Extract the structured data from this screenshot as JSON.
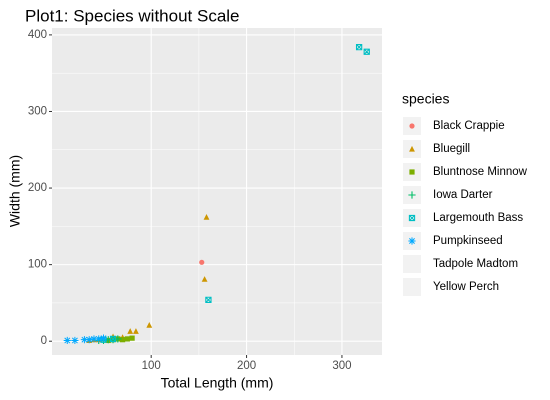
{
  "chart_data": {
    "type": "scatter",
    "title": "Plot1: Species without Scale",
    "x_label": "Total Length (mm)",
    "y_label": "Width (mm)",
    "legend_title": "species",
    "xlim": [
      -4,
      342
    ],
    "ylim": [
      -18,
      409
    ],
    "xticks": [
      100,
      200,
      300
    ],
    "yticks": [
      0,
      100,
      200,
      300,
      400
    ],
    "grid": true,
    "legend": "right",
    "series": [
      {
        "name": "Black Crappie",
        "color": "#F8766D",
        "shape": "circle",
        "x": [
          153
        ],
        "values": [
          103
        ]
      },
      {
        "name": "Bluegill",
        "color": "#CD9600",
        "shape": "triangle",
        "x": [
          158,
          156,
          98,
          84,
          78,
          60,
          45,
          40,
          35,
          50,
          70
        ],
        "values": [
          162,
          81,
          21,
          13,
          13,
          6,
          2,
          2,
          1,
          3,
          5
        ]
      },
      {
        "name": "Bluntnose Minnow",
        "color": "#7CAE00",
        "shape": "square",
        "x": [
          75,
          80,
          70,
          65,
          60,
          55
        ],
        "values": [
          3,
          4,
          2,
          3,
          2,
          1
        ]
      },
      {
        "name": "Iowa Darter",
        "color": "#00BE67",
        "shape": "plus",
        "x": [
          50,
          55,
          60,
          45,
          65
        ],
        "values": [
          1,
          2,
          2,
          1,
          3
        ]
      },
      {
        "name": "Largemouth Bass",
        "color": "#00BFC4",
        "shape": "square-cross",
        "x": [
          318,
          326,
          160,
          60,
          50
        ],
        "values": [
          384,
          378,
          54,
          3,
          2
        ]
      },
      {
        "name": "Pumpkinseed",
        "color": "#00A9FF",
        "shape": "asterisk",
        "x": [
          12,
          20,
          30,
          35,
          40,
          45,
          50
        ],
        "values": [
          1,
          1,
          2,
          2,
          3,
          3,
          4
        ]
      },
      {
        "name": "Tadpole Madtom",
        "color": "#C77CFF",
        "shape": "none",
        "x": [],
        "values": []
      },
      {
        "name": "Yellow Perch",
        "color": "#FF61CC",
        "shape": "none",
        "x": [],
        "values": []
      }
    ]
  }
}
